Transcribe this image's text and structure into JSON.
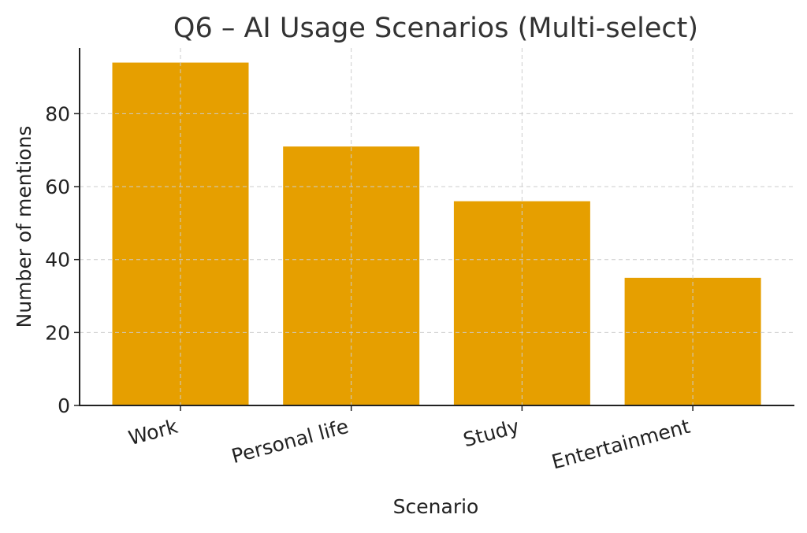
{
  "chart_data": {
    "type": "bar",
    "title": "Q6 – AI Usage Scenarios (Multi-select)",
    "xlabel": "Scenario",
    "ylabel": "Number of mentions",
    "categories": [
      "Work",
      "Personal life",
      "Study",
      "Entertainment"
    ],
    "values": [
      94,
      71,
      56,
      35
    ],
    "ylim": [
      0,
      98
    ],
    "yticks": [
      0,
      20,
      40,
      60,
      80
    ],
    "grid": true,
    "bar_color": "#e69f00"
  }
}
